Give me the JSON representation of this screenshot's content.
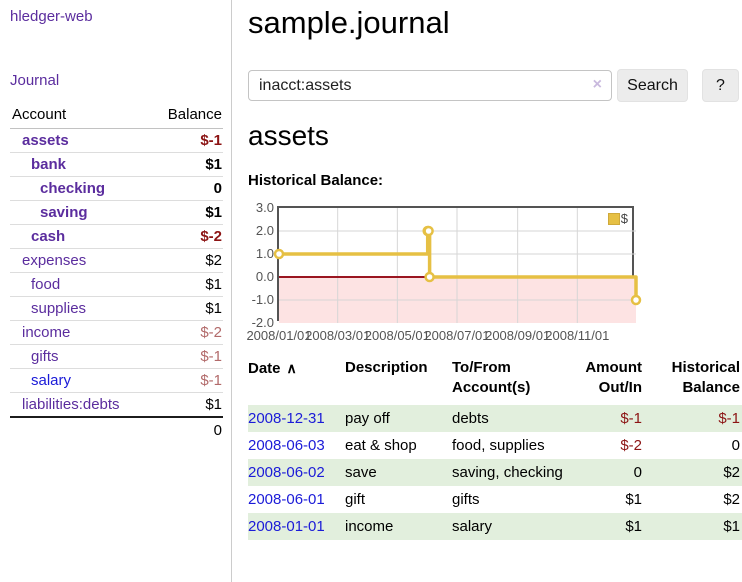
{
  "app": {
    "brand": "hledger-web",
    "nav_journal": "Journal"
  },
  "header": {
    "title": "sample.journal"
  },
  "search": {
    "value": "inacct:assets",
    "clear_icon": "×",
    "button_label": "Search",
    "help_label": "?"
  },
  "account_page": {
    "title": "assets",
    "chart_label": "Historical Balance:"
  },
  "sidebar": {
    "accounts_header": {
      "account": "Account",
      "balance": "Balance"
    },
    "rows": [
      {
        "name": "assets",
        "balance": "$-1",
        "depth": 1,
        "bold": true,
        "neg": "strong"
      },
      {
        "name": "bank",
        "balance": "$1",
        "depth": 2,
        "bold": true,
        "neg": "none"
      },
      {
        "name": "checking",
        "balance": "0",
        "depth": 3,
        "bold": true,
        "neg": "none"
      },
      {
        "name": "saving",
        "balance": "$1",
        "depth": 3,
        "bold": true,
        "neg": "none"
      },
      {
        "name": "cash",
        "balance": "$-2",
        "depth": 2,
        "bold": true,
        "neg": "strong"
      },
      {
        "name": "expenses",
        "balance": "$2",
        "depth": 1,
        "bold": false,
        "neg": "none"
      },
      {
        "name": "food",
        "balance": "$1",
        "depth": 2,
        "bold": false,
        "neg": "none"
      },
      {
        "name": "supplies",
        "balance": "$1",
        "depth": 2,
        "bold": false,
        "neg": "none"
      },
      {
        "name": "income",
        "balance": "$-2",
        "depth": 1,
        "bold": false,
        "neg": "soft"
      },
      {
        "name": "gifts",
        "balance": "$-1",
        "depth": 2,
        "bold": false,
        "neg": "soft"
      },
      {
        "name": "salary",
        "balance": "$-1",
        "depth": 2,
        "bold": false,
        "neg": "soft",
        "blue": true
      },
      {
        "name": "liabilities:debts",
        "balance": "$1",
        "depth": 1,
        "bold": false,
        "neg": "none"
      }
    ],
    "total": "0"
  },
  "chart_data": {
    "type": "line",
    "title": "Historical Balance:",
    "legend": "$",
    "steps": true,
    "grid": true,
    "legend_position": "top-right",
    "xlim": [
      "2008-01-01",
      "2008-12-31"
    ],
    "ylim": [
      -2,
      3
    ],
    "x_ticks": [
      "2008/01/01",
      "2008/03/01",
      "2008/05/01",
      "2008/07/01",
      "2008/09/01",
      "2008/11/01"
    ],
    "y_ticks": [
      "3.0",
      "2.0",
      "1.0",
      "0.0",
      "-1.0",
      "-2.0"
    ],
    "series": [
      {
        "name": "$",
        "points": [
          [
            "2008-01-01",
            1
          ],
          [
            "2008-06-01",
            2
          ],
          [
            "2008-06-02",
            2
          ],
          [
            "2008-06-03",
            0
          ],
          [
            "2008-12-31",
            -1
          ]
        ]
      }
    ]
  },
  "register": {
    "sort_icon": "∧",
    "headers": [
      {
        "label": "Date",
        "sortable": true
      },
      {
        "label": "Description"
      },
      {
        "label": "To/From Account(s)"
      },
      {
        "label": "Amount Out/In",
        "align": "right"
      },
      {
        "label": "Historical Balance",
        "align": "right"
      }
    ],
    "rows": [
      {
        "date": "2008-12-31",
        "description": "pay off",
        "accounts": "debts",
        "amount": "$-1",
        "balance": "$-1"
      },
      {
        "date": "2008-06-03",
        "description": "eat & shop",
        "accounts": "food, supplies",
        "amount": "$-2",
        "balance": "0"
      },
      {
        "date": "2008-06-02",
        "description": "save",
        "accounts": "saving, checking",
        "amount": "0",
        "balance": "$2"
      },
      {
        "date": "2008-06-01",
        "description": "gift",
        "accounts": "gifts",
        "amount": "$1",
        "balance": "$2"
      },
      {
        "date": "2008-01-01",
        "description": "income",
        "accounts": "salary",
        "amount": "$1",
        "balance": "$1"
      }
    ]
  },
  "colors": {
    "purple": "#5b2d9e",
    "blue": "#1b1bd8",
    "neg": "#8c1414",
    "negsoft": "#b26a6a",
    "gold": "#e6c044",
    "pink": "#fde3e3",
    "zero": "#9a1520",
    "grid": "#d6d6d6",
    "rowgreen": "#e2efdd",
    "btnbg": "#ececec",
    "axis": "#545454"
  }
}
